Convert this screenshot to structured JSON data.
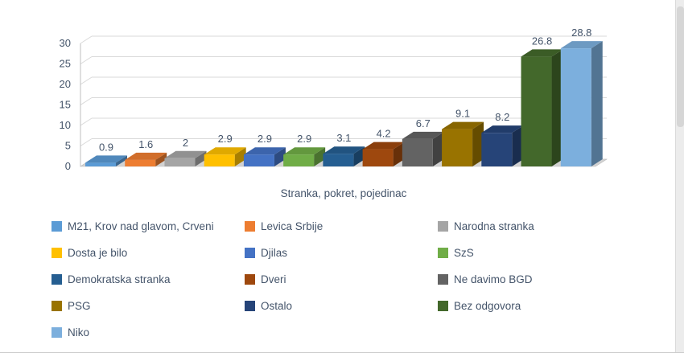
{
  "chart_data": {
    "type": "bar",
    "style": "3d-column",
    "title": "",
    "xlabel": "Stranka, pokret, pojedinac",
    "ylabel": "",
    "ylim": [
      0,
      30
    ],
    "yticks": [
      0,
      5,
      10,
      15,
      20,
      25,
      30
    ],
    "grid": true,
    "legend_position": "bottom",
    "series": [
      {
        "name": "M21, Krov nad glavom, Crveni",
        "value": 0.9,
        "label": "0.9",
        "color": "#5B9BD5"
      },
      {
        "name": "Levica Srbije",
        "value": 1.6,
        "label": "1.6",
        "color": "#ED7D31"
      },
      {
        "name": "Narodna stranka",
        "value": 2,
        "label": "2",
        "color": "#A5A5A5"
      },
      {
        "name": "Dosta je bilo",
        "value": 2.9,
        "label": "2.9",
        "color": "#FFC000"
      },
      {
        "name": "Djilas",
        "value": 2.9,
        "label": "2.9",
        "color": "#4472C4"
      },
      {
        "name": "SzS",
        "value": 2.9,
        "label": "2.9",
        "color": "#70AD47"
      },
      {
        "name": "Demokratska stranka",
        "value": 3.1,
        "label": "3.1",
        "color": "#255E91"
      },
      {
        "name": "Dveri",
        "value": 4.2,
        "label": "4.2",
        "color": "#9E480E"
      },
      {
        "name": "Ne davimo BGD",
        "value": 6.7,
        "label": "6.7",
        "color": "#636363"
      },
      {
        "name": "PSG",
        "value": 9.1,
        "label": "9.1",
        "color": "#997300"
      },
      {
        "name": "Ostalo",
        "value": 8.2,
        "label": "8.2",
        "color": "#264478"
      },
      {
        "name": "Bez odgovora",
        "value": 26.8,
        "label": "26.8",
        "color": "#43682B"
      },
      {
        "name": "Niko",
        "value": 28.8,
        "label": "28.8",
        "color": "#7CAFDD"
      }
    ]
  }
}
